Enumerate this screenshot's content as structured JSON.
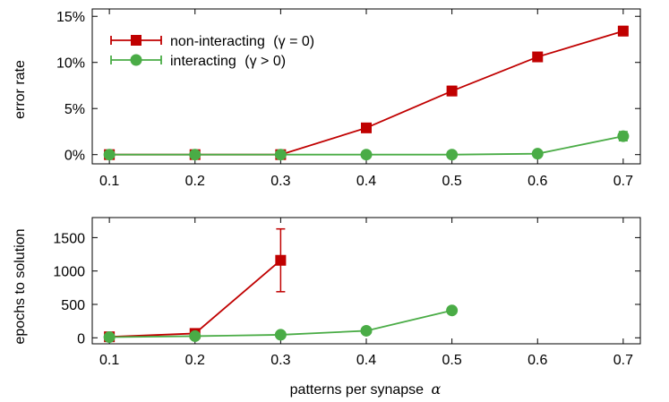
{
  "colors": {
    "red": "#c00000",
    "green": "#4aac46"
  },
  "x_label": {
    "prefix": "patterns per synapse",
    "symbol": "α"
  },
  "chart_data": [
    {
      "type": "line",
      "title": "",
      "xlabel": "",
      "ylabel": "error rate",
      "x": [
        0.1,
        0.2,
        0.3,
        0.4,
        0.5,
        0.6,
        0.7
      ],
      "xticks": [
        "0.1",
        "0.2",
        "0.3",
        "0.4",
        "0.5",
        "0.6",
        "0.7"
      ],
      "xlim": [
        0.08,
        0.72
      ],
      "ylim": [
        -0.01,
        0.158
      ],
      "yticks": [
        0,
        0.05,
        0.1,
        0.15
      ],
      "yticklabels": [
        "0%",
        "5%",
        "10%",
        "15%"
      ],
      "legend": {
        "position": "top-left"
      },
      "series": [
        {
          "name": "non-interacting",
          "legend_math": "(γ = 0)",
          "marker": "square",
          "color": "#c00000",
          "x": [
            0.1,
            0.2,
            0.3,
            0.4,
            0.5,
            0.6,
            0.7
          ],
          "values": [
            0,
            0,
            0,
            0.029,
            0.069,
            0.106,
            0.134
          ],
          "errors": [
            0,
            0,
            0,
            0,
            0.005,
            0.003,
            0.005
          ]
        },
        {
          "name": "interacting",
          "legend_math": "(γ > 0)",
          "marker": "circle",
          "color": "#4aac46",
          "x": [
            0.1,
            0.2,
            0.3,
            0.4,
            0.5,
            0.6,
            0.7
          ],
          "values": [
            0,
            0,
            0,
            0,
            0,
            0.001,
            0.02
          ],
          "errors": [
            0,
            0,
            0,
            0,
            0,
            0,
            0.005
          ]
        }
      ]
    },
    {
      "type": "line",
      "title": "",
      "xlabel": "patterns per synapse α",
      "ylabel": "epochs to solution",
      "x": [
        0.1,
        0.2,
        0.3,
        0.4,
        0.5,
        0.6,
        0.7
      ],
      "xticks": [
        "0.1",
        "0.2",
        "0.3",
        "0.4",
        "0.5",
        "0.6",
        "0.7"
      ],
      "xlim": [
        0.08,
        0.72
      ],
      "ylim": [
        -90,
        1800
      ],
      "yticks": [
        0,
        500,
        1000,
        1500
      ],
      "yticklabels": [
        "0",
        "500",
        "1000",
        "1500"
      ],
      "series": [
        {
          "name": "non-interacting",
          "marker": "square",
          "color": "#c00000",
          "x": [
            0.1,
            0.2,
            0.3
          ],
          "values": [
            15,
            65,
            1160
          ],
          "errors": [
            20,
            15,
            470
          ]
        },
        {
          "name": "interacting",
          "marker": "circle",
          "color": "#4aac46",
          "x": [
            0.1,
            0.2,
            0.3,
            0.4,
            0.5
          ],
          "values": [
            10,
            25,
            45,
            105,
            410
          ],
          "errors": [
            0,
            0,
            0,
            0,
            0
          ]
        }
      ]
    }
  ]
}
